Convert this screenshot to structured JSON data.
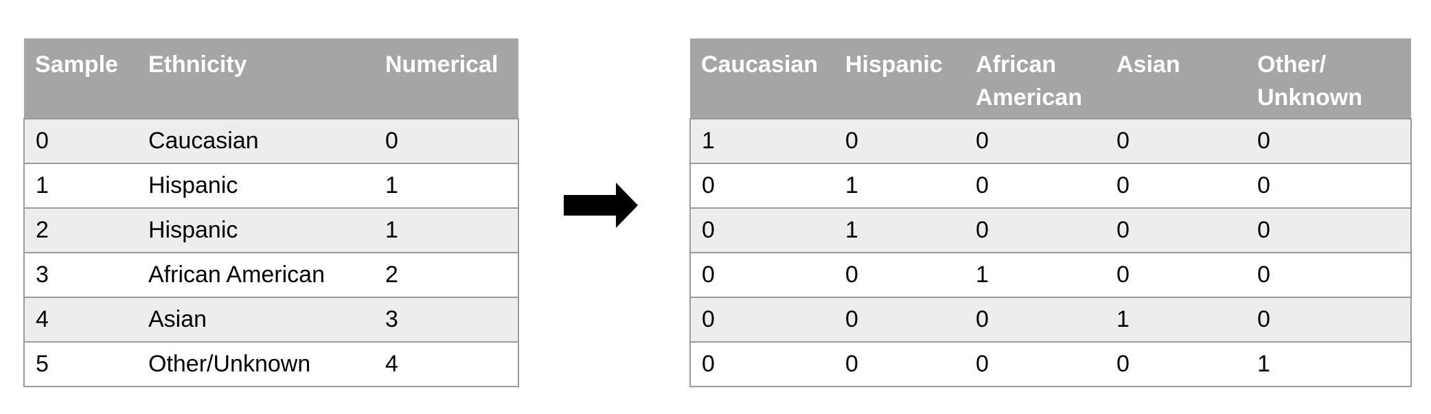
{
  "left_table": {
    "headers": [
      "Sample",
      "Ethnicity",
      "Numerical"
    ],
    "rows": [
      [
        "0",
        "Caucasian",
        "0"
      ],
      [
        "1",
        "Hispanic",
        "1"
      ],
      [
        "2",
        "Hispanic",
        "1"
      ],
      [
        "3",
        "African American",
        "2"
      ],
      [
        "4",
        "Asian",
        "3"
      ],
      [
        "5",
        "Other/Unknown",
        "4"
      ]
    ]
  },
  "arrow": {
    "icon": "right-arrow-icon",
    "color": "#000000"
  },
  "right_table": {
    "headers": [
      [
        "Caucasian"
      ],
      [
        "Hispanic"
      ],
      [
        "African",
        "American"
      ],
      [
        "Asian"
      ],
      [
        "Other/",
        "Unknown"
      ]
    ],
    "rows": [
      [
        "1",
        "0",
        "0",
        "0",
        "0"
      ],
      [
        "0",
        "1",
        "0",
        "0",
        "0"
      ],
      [
        "0",
        "1",
        "0",
        "0",
        "0"
      ],
      [
        "0",
        "0",
        "1",
        "0",
        "0"
      ],
      [
        "0",
        "0",
        "0",
        "1",
        "0"
      ],
      [
        "0",
        "0",
        "0",
        "0",
        "1"
      ]
    ]
  },
  "colors": {
    "header_bg": "#a5a5a5",
    "header_text": "#ffffff",
    "band_row": "#ededed",
    "plain_row": "#ffffff",
    "rule": "#9a9a9a"
  }
}
